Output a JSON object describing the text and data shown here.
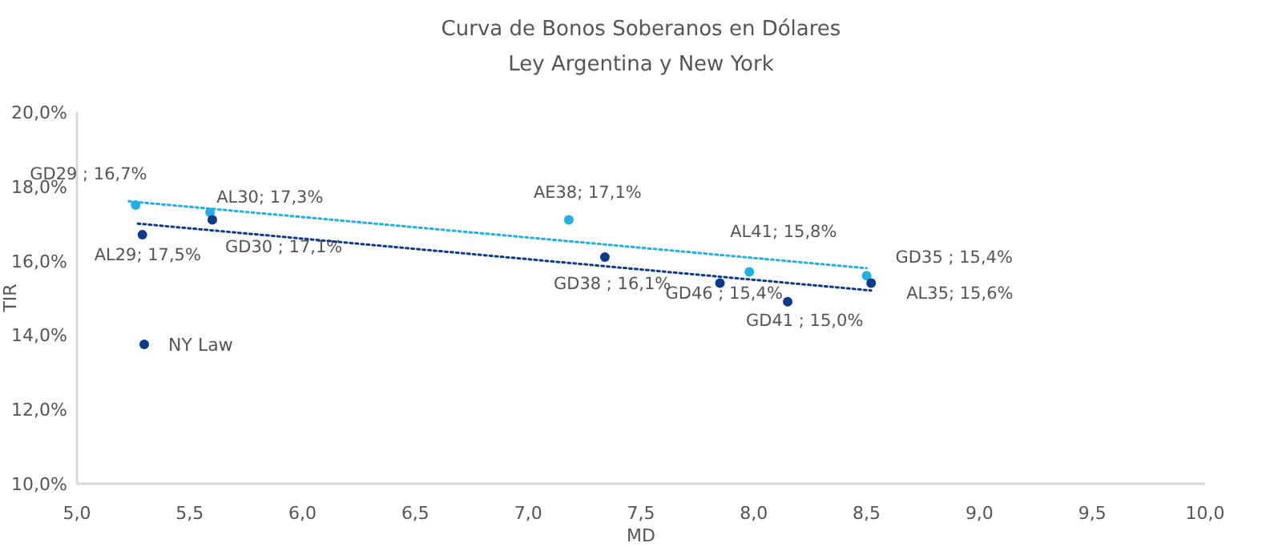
{
  "chart_data": {
    "type": "scatter",
    "title": "Curva de Bonos Soberanos en Dólares",
    "subtitle": "Ley Argentina y New York",
    "xlabel": "MD",
    "ylabel": "TIR",
    "xlim": [
      5,
      10
    ],
    "xticks": [
      {
        "value": 5,
        "label": "5,0"
      },
      {
        "value": 5.5,
        "label": "5,5"
      },
      {
        "value": 6,
        "label": "6,0"
      },
      {
        "value": 6.5,
        "label": "6,5"
      },
      {
        "value": 7,
        "label": "7,0"
      },
      {
        "value": 7.5,
        "label": "7,5"
      },
      {
        "value": 8,
        "label": "8,0"
      },
      {
        "value": 8.5,
        "label": "8,5"
      },
      {
        "value": 9,
        "label": "9,0"
      },
      {
        "value": 9.5,
        "label": "9,5"
      },
      {
        "value": 10,
        "label": "10,0"
      }
    ],
    "ylim": [
      10,
      20
    ],
    "yticks": [
      {
        "value": 10,
        "label": "10,0%"
      },
      {
        "value": 12,
        "label": "12,0%"
      },
      {
        "value": 14,
        "label": "14,0%"
      },
      {
        "value": 16,
        "label": "16,0%"
      },
      {
        "value": 18,
        "label": "18,0%"
      },
      {
        "value": 20,
        "label": "20,0%"
      }
    ],
    "grid": false,
    "legend": "left",
    "marker": "circle",
    "series": [
      {
        "color": "#22b0e3",
        "x": [
          5.26,
          5.59,
          7.18,
          7.98,
          8.5
        ],
        "values": [
          17.5,
          17.3,
          17.1,
          15.7,
          15.6
        ],
        "value_labels": [
          "GD29 ; 16,7%",
          "AL30; 17,3%",
          "AE38; 17,1%",
          "AL41; 15,8%",
          "GD35 ; 15,4%"
        ]
      },
      {
        "name": "NY Law",
        "color": "#0d3a8a",
        "x": [
          5.29,
          5.6,
          7.34,
          7.85,
          8.15,
          8.52
        ],
        "values": [
          16.7,
          17.1,
          16.1,
          15.4,
          14.9,
          15.4
        ],
        "value_labels": [
          "AL29; 17,5%",
          "GD30 ; 17,1%",
          "GD38 ; 16,1%",
          "GD46 ; 15,4%",
          "GD41 ; 15,0%",
          "AL35; 15,6%"
        ]
      },
      {
        "type": "line",
        "line_style": "dotted",
        "marker": "none",
        "color": "#22b0e3",
        "x": [
          5.23,
          8.5
        ],
        "values": [
          17.6,
          15.8
        ]
      },
      {
        "type": "line",
        "line_style": "dotted",
        "marker": "none",
        "color": "#0d3a8a",
        "x": [
          5.27,
          8.52
        ],
        "values": [
          17.0,
          15.2
        ]
      }
    ]
  }
}
